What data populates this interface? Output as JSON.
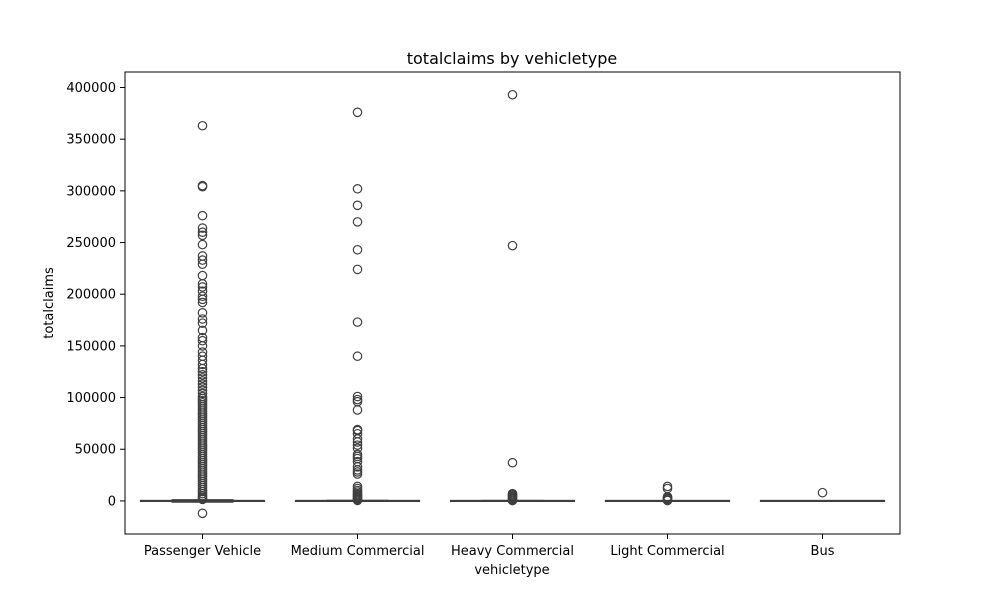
{
  "chart_data": {
    "type": "box",
    "title": "totalclaims by vehicletype",
    "xlabel": "vehicletype",
    "ylabel": "totalclaims",
    "ylim": [
      -32000,
      415000
    ],
    "yticks": [
      0,
      50000,
      100000,
      150000,
      200000,
      250000,
      300000,
      350000,
      400000
    ],
    "grid": false,
    "colors": {
      "box_fill": "#ffffff",
      "line": "#3f3f3f",
      "frame": "#000000"
    },
    "categories": [
      {
        "name": "Passenger Vehicle",
        "box": {
          "whisker_low": -1200,
          "q1": 0,
          "median": 0,
          "q3": 0,
          "whisker_high": 1200
        },
        "outliers": [
          -12000,
          1500,
          2500,
          3500,
          5000,
          7000,
          9000,
          11000,
          13000,
          15000,
          17000,
          19000,
          21000,
          23000,
          25000,
          27000,
          29000,
          31000,
          33000,
          35000,
          37000,
          39000,
          41000,
          43000,
          45000,
          47000,
          49000,
          51000,
          53000,
          55000,
          57000,
          59000,
          61000,
          63000,
          65000,
          67000,
          69000,
          71000,
          73000,
          75000,
          77000,
          79000,
          81000,
          83000,
          85000,
          87000,
          89000,
          91000,
          93000,
          95000,
          97000,
          99000,
          101000,
          104000,
          107000,
          110000,
          113000,
          116000,
          119000,
          122000,
          125000,
          128000,
          132000,
          136000,
          140000,
          144000,
          150000,
          155000,
          158000,
          165000,
          172000,
          176000,
          182000,
          192000,
          195000,
          198000,
          203000,
          207000,
          210000,
          218000,
          229000,
          233000,
          237000,
          248000,
          257000,
          260000,
          264000,
          276000,
          304000,
          305000,
          363000
        ]
      },
      {
        "name": "Medium Commercial",
        "box": {
          "whisker_low": -500,
          "q1": 0,
          "median": 0,
          "q3": 0,
          "whisker_high": 500
        },
        "outliers": [
          500,
          1000,
          1500,
          2000,
          3000,
          4000,
          5000,
          6000,
          7000,
          8500,
          10000,
          12000,
          14000,
          26000,
          28000,
          30000,
          33000,
          38000,
          41000,
          43000,
          45000,
          51000,
          54000,
          57000,
          60000,
          65000,
          68000,
          69000,
          88000,
          96000,
          98000,
          101000,
          140000,
          173000,
          224000,
          243000,
          270000,
          286000,
          302000,
          376000
        ]
      },
      {
        "name": "Heavy Commercial",
        "box": {
          "whisker_low": -400,
          "q1": 0,
          "median": 0,
          "q3": 0,
          "whisker_high": 400
        },
        "outliers": [
          400,
          1000,
          2000,
          3000,
          4000,
          5000,
          6000,
          7000,
          37000,
          247000,
          393000
        ]
      },
      {
        "name": "Light Commercial",
        "box": {
          "whisker_low": -300,
          "q1": 0,
          "median": 0,
          "q3": 0,
          "whisker_high": 300
        },
        "outliers": [
          400,
          1200,
          2200,
          3000,
          4000,
          12000,
          14000
        ]
      },
      {
        "name": "Bus",
        "box": {
          "whisker_low": -300,
          "q1": 0,
          "median": 0,
          "q3": 0,
          "whisker_high": 300
        },
        "outliers": [
          8000
        ]
      }
    ]
  }
}
